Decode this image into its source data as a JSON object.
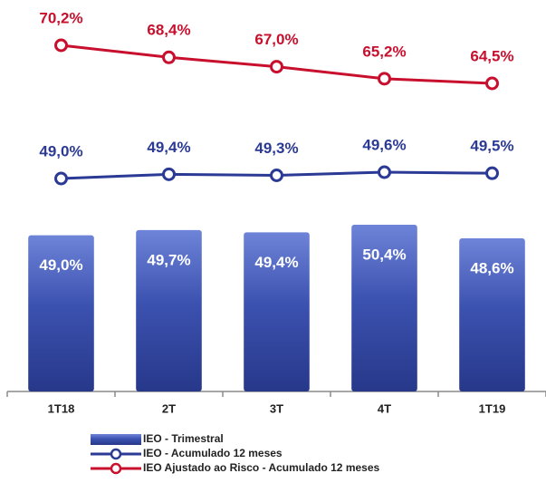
{
  "chart_data": {
    "type": "bar",
    "categories": [
      "1T18",
      "2T",
      "3T",
      "4T",
      "1T19"
    ],
    "series": [
      {
        "name": "IEO - Trimestral",
        "type": "bar",
        "color": "#2f3f99",
        "values": [
          49.0,
          49.7,
          49.4,
          50.4,
          48.6
        ],
        "value_labels": [
          "49,0%",
          "49,7%",
          "49,4%",
          "50,4%",
          "48,6%"
        ]
      },
      {
        "name": "IEO - Acumulado 12 meses",
        "type": "line",
        "color": "#2b3a94",
        "values": [
          49.0,
          49.4,
          49.3,
          49.6,
          49.5
        ],
        "value_labels": [
          "49,0%",
          "49,4%",
          "49,3%",
          "49,6%",
          "49,5%"
        ]
      },
      {
        "name": "IEO Ajustado ao Risco - Acumulado 12 meses",
        "type": "line",
        "color": "#c8102e",
        "values": [
          70.2,
          68.4,
          67.0,
          65.2,
          64.5
        ],
        "value_labels": [
          "70,2%",
          "68,4%",
          "67,0%",
          "65,2%",
          "64,5%"
        ]
      }
    ]
  }
}
